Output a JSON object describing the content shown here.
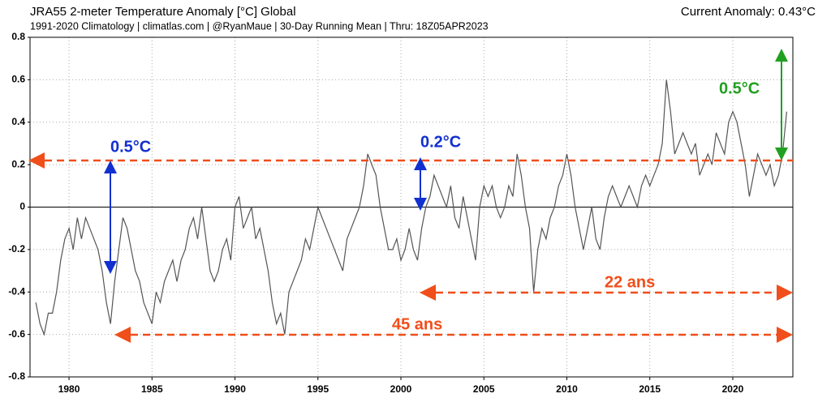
{
  "chart_data": {
    "type": "line",
    "title": "JRA55 2-meter Temperature Anomaly [°C] Global",
    "subtitle": "1991-2020 Climatology | climatlas.com | @RyanMaue | 30-Day Running Mean | Thru: 18Z05APR2023",
    "current_anomaly": "Current Anomaly: 0.43°C",
    "annotations": [
      "0.5°C",
      "0.2°C",
      "0.5°C",
      "22 ans",
      "45 ans"
    ],
    "x": [
      1978,
      1978.25,
      1978.5,
      1978.75,
      1979,
      1979.25,
      1979.5,
      1979.75,
      1980,
      1980.25,
      1980.5,
      1980.75,
      1981,
      1981.25,
      1981.5,
      1981.75,
      1982,
      1982.25,
      1982.5,
      1982.75,
      1983,
      1983.25,
      1983.5,
      1983.75,
      1984,
      1984.25,
      1984.5,
      1984.75,
      1985,
      1985.25,
      1985.5,
      1985.75,
      1986,
      1986.25,
      1986.5,
      1986.75,
      1987,
      1987.25,
      1987.5,
      1987.75,
      1988,
      1988.25,
      1988.5,
      1988.75,
      1989,
      1989.25,
      1989.5,
      1989.75,
      1990,
      1990.25,
      1990.5,
      1990.75,
      1991,
      1991.25,
      1991.5,
      1991.75,
      1992,
      1992.25,
      1992.5,
      1992.75,
      1993,
      1993.25,
      1993.5,
      1993.75,
      1994,
      1994.25,
      1994.5,
      1994.75,
      1995,
      1995.25,
      1995.5,
      1995.75,
      1996,
      1996.25,
      1996.5,
      1996.75,
      1997,
      1997.25,
      1997.5,
      1997.75,
      1998,
      1998.25,
      1998.5,
      1998.75,
      1999,
      1999.25,
      1999.5,
      1999.75,
      2000,
      2000.25,
      2000.5,
      2000.75,
      2001,
      2001.25,
      2001.5,
      2001.75,
      2002,
      2002.25,
      2002.5,
      2002.75,
      2003,
      2003.25,
      2003.5,
      2003.75,
      2004,
      2004.25,
      2004.5,
      2004.75,
      2005,
      2005.25,
      2005.5,
      2005.75,
      2006,
      2006.25,
      2006.5,
      2006.75,
      2007,
      2007.25,
      2007.5,
      2007.75,
      2008,
      2008.25,
      2008.5,
      2008.75,
      2009,
      2009.25,
      2009.5,
      2009.75,
      2010,
      2010.25,
      2010.5,
      2010.75,
      2011,
      2011.25,
      2011.5,
      2011.75,
      2012,
      2012.25,
      2012.5,
      2012.75,
      2013,
      2013.25,
      2013.5,
      2013.75,
      2014,
      2014.25,
      2014.5,
      2014.75,
      2015,
      2015.25,
      2015.5,
      2015.75,
      2016,
      2016.25,
      2016.5,
      2016.75,
      2017,
      2017.25,
      2017.5,
      2017.75,
      2018,
      2018.25,
      2018.5,
      2018.75,
      2019,
      2019.25,
      2019.5,
      2019.75,
      2020,
      2020.25,
      2020.5,
      2020.75,
      2021,
      2021.25,
      2021.5,
      2021.75,
      2022,
      2022.25,
      2022.5,
      2022.75,
      2023,
      2023.25
    ],
    "series": [
      {
        "color": "#555555",
        "values": [
          -0.45,
          -0.55,
          -0.6,
          -0.5,
          -0.5,
          -0.4,
          -0.25,
          -0.15,
          -0.1,
          -0.2,
          -0.05,
          -0.15,
          -0.05,
          -0.1,
          -0.15,
          -0.2,
          -0.3,
          -0.45,
          -0.55,
          -0.35,
          -0.2,
          -0.05,
          -0.1,
          -0.2,
          -0.3,
          -0.35,
          -0.45,
          -0.5,
          -0.55,
          -0.4,
          -0.45,
          -0.35,
          -0.3,
          -0.25,
          -0.35,
          -0.25,
          -0.2,
          -0.1,
          -0.05,
          -0.15,
          0.0,
          -0.15,
          -0.3,
          -0.35,
          -0.3,
          -0.2,
          -0.15,
          -0.25,
          0.0,
          0.05,
          -0.1,
          -0.05,
          0.0,
          -0.15,
          -0.1,
          -0.2,
          -0.3,
          -0.45,
          -0.55,
          -0.5,
          -0.6,
          -0.4,
          -0.35,
          -0.3,
          -0.25,
          -0.15,
          -0.2,
          -0.1,
          0.0,
          -0.05,
          -0.1,
          -0.15,
          -0.2,
          -0.25,
          -0.3,
          -0.15,
          -0.1,
          -0.05,
          0.0,
          0.1,
          0.25,
          0.2,
          0.15,
          0.0,
          -0.1,
          -0.2,
          -0.2,
          -0.15,
          -0.25,
          -0.2,
          -0.1,
          -0.2,
          -0.25,
          -0.1,
          0.0,
          0.05,
          0.15,
          0.1,
          0.05,
          0.0,
          0.1,
          -0.05,
          -0.1,
          0.05,
          -0.05,
          -0.15,
          -0.25,
          0.0,
          0.1,
          0.05,
          0.1,
          0.0,
          -0.05,
          0.0,
          0.1,
          0.05,
          0.25,
          0.15,
          0.0,
          -0.1,
          -0.4,
          -0.2,
          -0.1,
          -0.15,
          -0.05,
          0.0,
          0.1,
          0.15,
          0.25,
          0.15,
          0.0,
          -0.1,
          -0.2,
          -0.1,
          0.0,
          -0.15,
          -0.2,
          -0.05,
          0.05,
          0.1,
          0.05,
          0.0,
          0.05,
          0.1,
          0.05,
          0.0,
          0.1,
          0.15,
          0.1,
          0.15,
          0.2,
          0.3,
          0.6,
          0.45,
          0.25,
          0.3,
          0.35,
          0.3,
          0.25,
          0.3,
          0.15,
          0.2,
          0.25,
          0.2,
          0.35,
          0.3,
          0.25,
          0.4,
          0.45,
          0.4,
          0.3,
          0.2,
          0.05,
          0.15,
          0.25,
          0.2,
          0.15,
          0.2,
          0.1,
          0.15,
          0.25,
          0.45
        ]
      }
    ],
    "xlim": [
      1977.65,
      2023.62
    ],
    "ylim": [
      -0.8,
      0.8
    ],
    "xticks": [
      1980,
      1985,
      1990,
      1995,
      2000,
      2005,
      2010,
      2015,
      2020
    ],
    "yticks": [
      -0.8,
      -0.6,
      -0.4,
      -0.2,
      0,
      0.2,
      0.4,
      0.6,
      0.8
    ],
    "grid": true
  }
}
